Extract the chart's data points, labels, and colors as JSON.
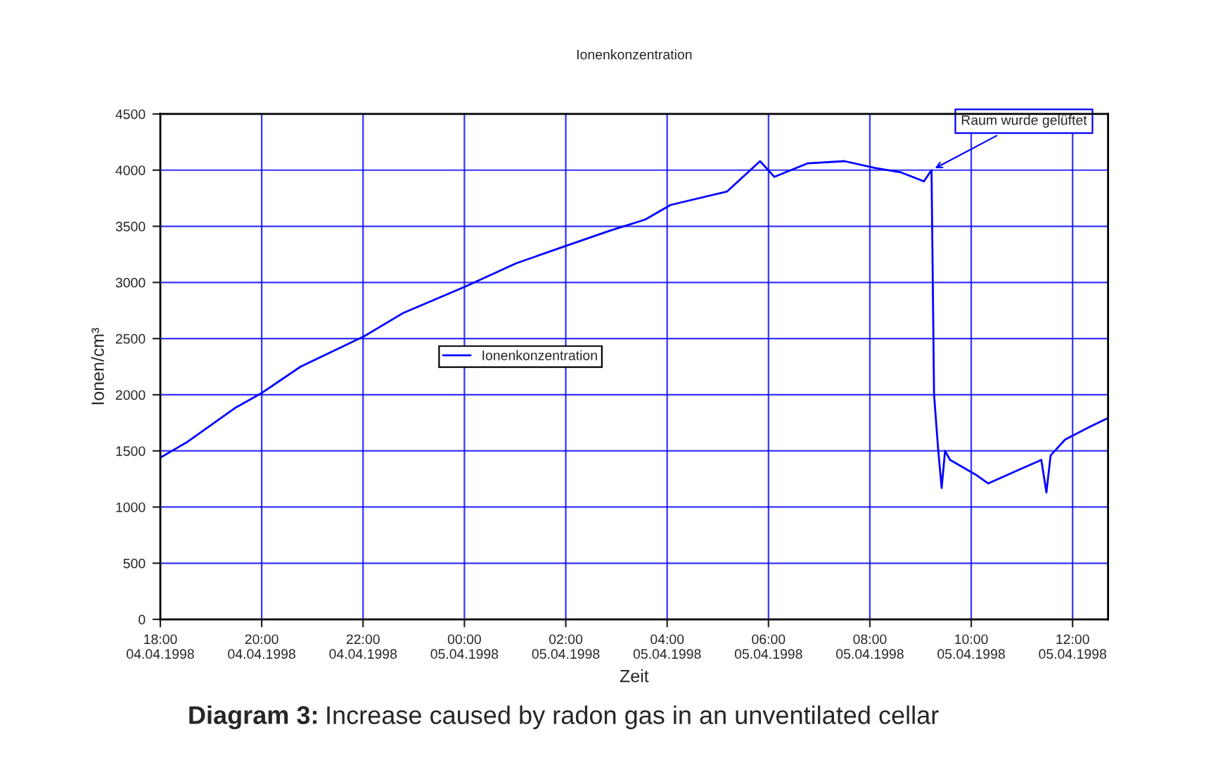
{
  "chart_data": {
    "type": "line",
    "title": "Ionenkonzentration",
    "xlabel": "Zeit",
    "ylabel": "Ionen/cm³",
    "x": [
      "1998-04-04T18:00",
      "1998-04-04T18:32",
      "1998-04-04T19:28",
      "1998-04-04T20:01",
      "1998-04-04T20:46",
      "1998-04-04T22:01",
      "1998-04-04T22:48",
      "1998-04-05T00:00",
      "1998-04-05T01:01",
      "1998-04-05T02:02",
      "1998-04-05T02:52",
      "1998-04-05T03:34",
      "1998-04-05T04:04",
      "1998-04-05T05:11",
      "1998-04-05T05:50",
      "1998-04-05T06:07",
      "1998-04-05T06:46",
      "1998-04-05T07:30",
      "1998-04-05T08:06",
      "1998-04-05T08:37",
      "1998-04-05T09:04",
      "1998-04-05T09:13",
      "1998-04-05T09:16",
      "1998-04-05T09:21",
      "1998-04-05T09:25",
      "1998-04-05T09:29",
      "1998-04-05T09:35",
      "1998-04-05T10:05",
      "1998-04-05T10:20",
      "1998-04-05T10:56",
      "1998-04-05T11:23",
      "1998-04-05T11:29",
      "1998-04-05T11:34",
      "1998-04-05T11:51",
      "1998-04-05T12:19",
      "1998-04-05T12:41"
    ],
    "series": [
      {
        "name": "Ionenkonzentration",
        "color": "#0000ff",
        "values": [
          1440,
          1580,
          1880,
          2020,
          2250,
          2520,
          2730,
          2960,
          3170,
          3330,
          3460,
          3560,
          3690,
          3810,
          4080,
          3940,
          4060,
          4080,
          4020,
          3980,
          3900,
          4000,
          2000,
          1500,
          1170,
          1500,
          1420,
          1290,
          1210,
          1330,
          1420,
          1130,
          1460,
          1600,
          1710,
          1790
        ]
      }
    ],
    "xlim": [
      "1998-04-04T18:00",
      "1998-04-05T12:42"
    ],
    "xticks": [
      {
        "value": "1998-04-04T18:00",
        "label": "18:00\n04.04.1998"
      },
      {
        "value": "1998-04-04T20:00",
        "label": "20:00\n04.04.1998"
      },
      {
        "value": "1998-04-04T22:00",
        "label": "22:00\n04.04.1998"
      },
      {
        "value": "1998-04-05T00:00",
        "label": "00:00\n05.04.1998"
      },
      {
        "value": "1998-04-05T02:00",
        "label": "02:00\n05.04.1998"
      },
      {
        "value": "1998-04-05T04:00",
        "label": "04:00\n05.04.1998"
      },
      {
        "value": "1998-04-05T06:00",
        "label": "06:00\n05.04.1998"
      },
      {
        "value": "1998-04-05T08:00",
        "label": "08:00\n05.04.1998"
      },
      {
        "value": "1998-04-05T10:00",
        "label": "10:00\n05.04.1998"
      },
      {
        "value": "1998-04-05T12:00",
        "label": "12:00\n05.04.1998"
      }
    ],
    "ylim": [
      0,
      4500
    ],
    "yticks": [
      0,
      500,
      1000,
      1500,
      2000,
      2500,
      3000,
      3500,
      4000,
      4500
    ],
    "grid": true,
    "legend": "center",
    "marker": "none",
    "line_style": "solid",
    "annotations": [
      {
        "text": "Raum wurde gelüftet",
        "x": "1998-04-05T09:13",
        "y": 4000
      },
      "Diagram 3:",
      "Increase caused by radon gas in an unventilated cellar"
    ]
  }
}
